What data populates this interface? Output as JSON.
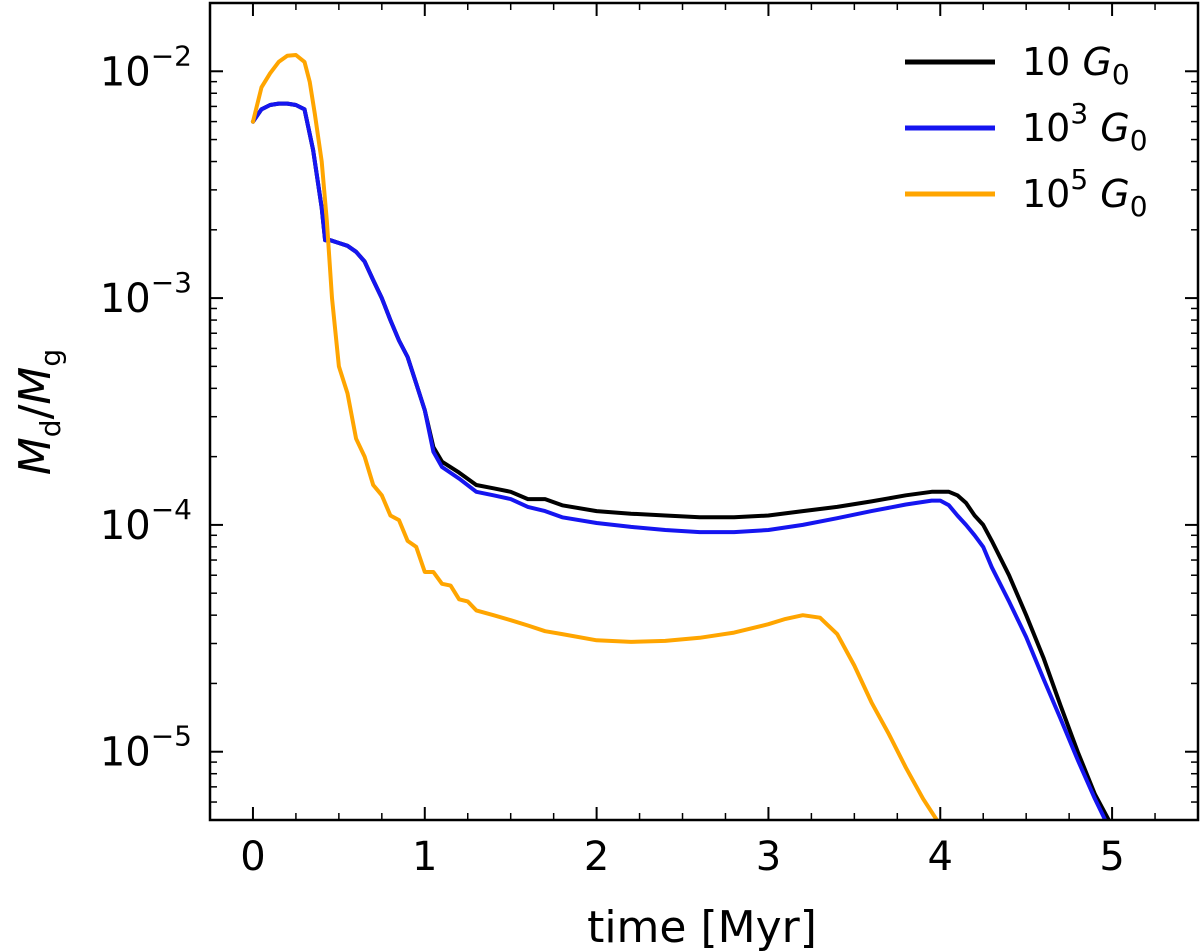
{
  "chart_data": {
    "type": "line",
    "xlabel": "time [Myr]",
    "ylabel_main": "M",
    "ylabel_sub_d": "d",
    "ylabel_slash": "/",
    "ylabel_sub_g": "g",
    "xlim": [
      -0.25,
      5.5
    ],
    "ylim": [
      5e-06,
      0.02
    ],
    "yscale": "log",
    "x_ticks": [
      {
        "value": 0,
        "label": "0"
      },
      {
        "value": 1,
        "label": "1"
      },
      {
        "value": 2,
        "label": "2"
      },
      {
        "value": 3,
        "label": "3"
      },
      {
        "value": 4,
        "label": "4"
      },
      {
        "value": 5,
        "label": "5"
      }
    ],
    "y_ticks": [
      {
        "value": 0.01,
        "base": "10",
        "exp": "−2"
      },
      {
        "value": 0.001,
        "base": "10",
        "exp": "−3"
      },
      {
        "value": 0.0001,
        "base": "10",
        "exp": "−4"
      },
      {
        "value": 1e-05,
        "base": "10",
        "exp": "−5"
      }
    ],
    "legend_position": "top-right",
    "series": [
      {
        "name": "10 G0",
        "legend_prefix": "10",
        "legend_exp": "",
        "legend_sym": "G",
        "legend_sub": "0",
        "color": "#000000",
        "x": [
          0.0,
          0.05,
          0.1,
          0.15,
          0.2,
          0.25,
          0.3,
          0.35,
          0.4,
          0.42,
          0.45,
          0.5,
          0.55,
          0.6,
          0.65,
          0.7,
          0.75,
          0.8,
          0.85,
          0.9,
          0.95,
          1.0,
          1.05,
          1.1,
          1.2,
          1.3,
          1.4,
          1.5,
          1.6,
          1.7,
          1.8,
          2.0,
          2.2,
          2.4,
          2.6,
          2.8,
          3.0,
          3.2,
          3.4,
          3.6,
          3.8,
          3.95,
          4.05,
          4.1,
          4.15,
          4.2,
          4.25,
          4.3,
          4.4,
          4.5,
          4.6,
          4.7,
          4.8,
          4.9,
          4.98
        ],
        "y": [
          0.006,
          0.0068,
          0.0071,
          0.0072,
          0.0072,
          0.0071,
          0.0068,
          0.0045,
          0.0025,
          0.0018,
          0.0018,
          0.00175,
          0.0017,
          0.0016,
          0.00145,
          0.0012,
          0.001,
          0.0008,
          0.00065,
          0.00055,
          0.00042,
          0.00032,
          0.00022,
          0.00019,
          0.00017,
          0.00015,
          0.000145,
          0.00014,
          0.00013,
          0.00013,
          0.000122,
          0.000115,
          0.000112,
          0.00011,
          0.000108,
          0.000108,
          0.00011,
          0.000115,
          0.00012,
          0.000127,
          0.000135,
          0.00014,
          0.00014,
          0.000135,
          0.000125,
          0.00011,
          0.0001,
          8.5e-05,
          6e-05,
          4e-05,
          2.6e-05,
          1.6e-05,
          1e-05,
          6.5e-06,
          5e-06
        ]
      },
      {
        "name": "10^3 G0",
        "legend_prefix": "10",
        "legend_exp": "3",
        "legend_sym": "G",
        "legend_sub": "0",
        "color": "#1515f0",
        "x": [
          0.0,
          0.05,
          0.1,
          0.15,
          0.2,
          0.25,
          0.3,
          0.35,
          0.4,
          0.42,
          0.45,
          0.5,
          0.55,
          0.6,
          0.65,
          0.7,
          0.75,
          0.8,
          0.85,
          0.9,
          0.95,
          1.0,
          1.05,
          1.1,
          1.2,
          1.3,
          1.4,
          1.5,
          1.6,
          1.7,
          1.8,
          2.0,
          2.2,
          2.4,
          2.6,
          2.8,
          3.0,
          3.2,
          3.4,
          3.6,
          3.8,
          3.95,
          4.0,
          4.05,
          4.1,
          4.15,
          4.2,
          4.25,
          4.3,
          4.4,
          4.5,
          4.6,
          4.7,
          4.8,
          4.9,
          4.96
        ],
        "y": [
          0.006,
          0.0068,
          0.0071,
          0.0072,
          0.0072,
          0.0071,
          0.0068,
          0.0045,
          0.0025,
          0.0018,
          0.0018,
          0.00175,
          0.0017,
          0.0016,
          0.00145,
          0.0012,
          0.001,
          0.0008,
          0.00065,
          0.00055,
          0.00042,
          0.00032,
          0.00021,
          0.00018,
          0.00016,
          0.00014,
          0.000135,
          0.00013,
          0.00012,
          0.000115,
          0.000108,
          0.000102,
          9.8e-05,
          9.5e-05,
          9.3e-05,
          9.3e-05,
          9.5e-05,
          0.0001,
          0.000107,
          0.000115,
          0.000123,
          0.000128,
          0.000128,
          0.000122,
          0.00011,
          0.0001,
          9e-05,
          8e-05,
          6.5e-05,
          4.6e-05,
          3.2e-05,
          2.1e-05,
          1.4e-05,
          9.2e-06,
          6.2e-06,
          5e-06
        ]
      },
      {
        "name": "10^5 G0",
        "legend_prefix": "10",
        "legend_exp": "5",
        "legend_sym": "G",
        "legend_sub": "0",
        "color": "#ffa500",
        "x": [
          0.0,
          0.05,
          0.1,
          0.15,
          0.2,
          0.25,
          0.3,
          0.33,
          0.36,
          0.4,
          0.43,
          0.46,
          0.5,
          0.55,
          0.6,
          0.65,
          0.7,
          0.75,
          0.8,
          0.85,
          0.9,
          0.95,
          1.0,
          1.05,
          1.1,
          1.15,
          1.2,
          1.25,
          1.3,
          1.4,
          1.5,
          1.6,
          1.7,
          1.8,
          2.0,
          2.2,
          2.4,
          2.6,
          2.8,
          3.0,
          3.1,
          3.2,
          3.3,
          3.4,
          3.5,
          3.6,
          3.7,
          3.8,
          3.9,
          3.98
        ],
        "y": [
          0.006,
          0.0085,
          0.0098,
          0.011,
          0.0117,
          0.0118,
          0.011,
          0.009,
          0.0065,
          0.004,
          0.0022,
          0.001,
          0.0005,
          0.00038,
          0.00024,
          0.0002,
          0.00015,
          0.000135,
          0.00011,
          0.000105,
          8.5e-05,
          8e-05,
          6.2e-05,
          6.2e-05,
          5.5e-05,
          5.4e-05,
          4.7e-05,
          4.6e-05,
          4.2e-05,
          4e-05,
          3.8e-05,
          3.6e-05,
          3.4e-05,
          3.3e-05,
          3.1e-05,
          3.05e-05,
          3.08e-05,
          3.18e-05,
          3.35e-05,
          3.65e-05,
          3.85e-05,
          4e-05,
          3.9e-05,
          3.3e-05,
          2.4e-05,
          1.65e-05,
          1.2e-05,
          8.5e-06,
          6.2e-06,
          5e-06
        ]
      }
    ]
  }
}
